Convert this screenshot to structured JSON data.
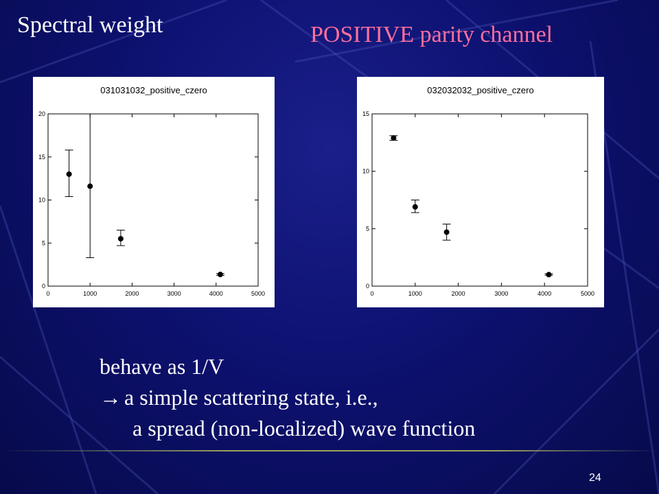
{
  "slide": {
    "title": "Spectral weight",
    "subtitle": "POSITIVE parity channel",
    "subtitle_color": "#ff6f9c",
    "body": {
      "line1": "behave as 1/V",
      "line2_arrow_icon": "right-arrow-icon",
      "line2_arrow": "→",
      "line2": "a simple scattering state, i.e.,",
      "line3": "a spread (non-localized) wave function"
    },
    "page_number": "24"
  },
  "chart_data": [
    {
      "type": "scatter",
      "title": "031031032_positive_czero",
      "xlabel": "",
      "ylabel": "",
      "xlim": [
        0,
        5000
      ],
      "ylim": [
        0,
        20
      ],
      "xticks": [
        0,
        1000,
        2000,
        3000,
        4000,
        5000
      ],
      "yticks": [
        0,
        5,
        10,
        15,
        20
      ],
      "grid": false,
      "error_bars": true,
      "series": [
        {
          "points": [
            {
              "x": 500,
              "y": 13.0,
              "err_low": 10.4,
              "err_high": 15.8
            },
            {
              "x": 1000,
              "y": 11.6,
              "err_low": 3.3,
              "err_high": 20.0
            },
            {
              "x": 1730,
              "y": 5.5,
              "err_low": 4.7,
              "err_high": 6.5
            },
            {
              "x": 4100,
              "y": 1.35,
              "err_low": 1.25,
              "err_high": 1.45
            }
          ]
        }
      ]
    },
    {
      "type": "scatter",
      "title": "032032032_positive_czero",
      "xlabel": "",
      "ylabel": "",
      "xlim": [
        0,
        5000
      ],
      "ylim": [
        0,
        15
      ],
      "xticks": [
        0,
        1000,
        2000,
        3000,
        4000,
        5000
      ],
      "yticks": [
        0,
        5,
        10,
        15
      ],
      "grid": false,
      "error_bars": true,
      "series": [
        {
          "points": [
            {
              "x": 500,
              "y": 12.9,
              "err_low": 12.7,
              "err_high": 13.1
            },
            {
              "x": 1000,
              "y": 6.9,
              "err_low": 6.4,
              "err_high": 7.5
            },
            {
              "x": 1730,
              "y": 4.7,
              "err_low": 4.0,
              "err_high": 5.4
            },
            {
              "x": 4100,
              "y": 1.0,
              "err_low": 0.95,
              "err_high": 1.08
            }
          ]
        }
      ]
    }
  ]
}
